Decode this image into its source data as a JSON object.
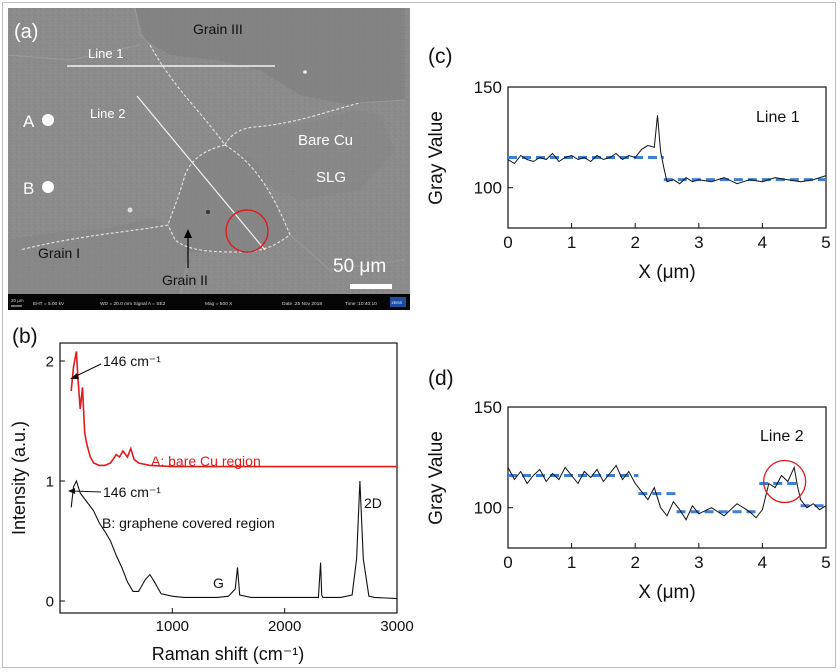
{
  "panels": {
    "a": {
      "label": "(a)",
      "grain1": "Grain I",
      "grain2": "Grain II",
      "grain3": "Grain III",
      "bare_cu": "Bare Cu",
      "slg": "SLG",
      "line1": "Line 1",
      "line2": "Line 2",
      "pointA": "A",
      "pointB": "B",
      "scalebar": "50 μm",
      "info_scale": "20 μm",
      "info_eht": "EHT = 5.00 kV",
      "info_wd": "WD = 20.0 mm   Signal A = SE2",
      "info_mag": "Mag = 500 X",
      "info_date": "Date :25 Nov 2018",
      "info_time": "Time :10:40:10",
      "info_logo": "ZEISS"
    },
    "b": {
      "label": "(b)"
    },
    "c": {
      "label": "(c)"
    },
    "d": {
      "label": "(d)"
    }
  },
  "colors": {
    "red": "#e01b1b",
    "black": "#111111",
    "blue_fit": "#3f7fd3",
    "sem_bg": "#8a8a8a",
    "sem_dark": "#7a7a7a"
  },
  "chart_data": [
    {
      "id": "b",
      "type": "line",
      "xlabel": "Raman shift (cm⁻¹)",
      "ylabel": "Intensity (a.u.)",
      "xlim": [
        0,
        3000
      ],
      "ylim": [
        -0.1,
        2.15
      ],
      "xticks": [
        1000,
        2000,
        3000
      ],
      "yticks": [
        0,
        1,
        2
      ],
      "series": [
        {
          "name": "A: bare Cu region",
          "color": "#e01b1b",
          "x": [
            100,
            120,
            146,
            160,
            180,
            200,
            220,
            240,
            270,
            300,
            350,
            400,
            450,
            500,
            530,
            560,
            600,
            630,
            660,
            700,
            800,
            1000,
            1500,
            2000,
            2500,
            3000
          ],
          "y": [
            1.75,
            1.95,
            2.08,
            1.85,
            1.6,
            1.78,
            1.4,
            1.3,
            1.2,
            1.15,
            1.13,
            1.13,
            1.15,
            1.22,
            1.2,
            1.25,
            1.2,
            1.27,
            1.18,
            1.15,
            1.13,
            1.12,
            1.12,
            1.12,
            1.12,
            1.12
          ]
        },
        {
          "name": "B: graphene covered region",
          "color": "#111111",
          "x": [
            100,
            120,
            146,
            180,
            220,
            260,
            300,
            350,
            400,
            450,
            500,
            550,
            600,
            650,
            700,
            760,
            800,
            840,
            900,
            1000,
            1100,
            1200,
            1300,
            1400,
            1500,
            1560,
            1580,
            1600,
            1700,
            1900,
            2100,
            2300,
            2320,
            2330,
            2340,
            2400,
            2500,
            2600,
            2640,
            2670,
            2700,
            2750,
            2800,
            3000
          ],
          "y": [
            0.78,
            0.95,
            1.0,
            0.9,
            0.85,
            0.8,
            0.75,
            0.65,
            0.58,
            0.5,
            0.38,
            0.28,
            0.16,
            0.08,
            0.08,
            0.18,
            0.22,
            0.16,
            0.06,
            0.04,
            0.03,
            0.03,
            0.03,
            0.03,
            0.04,
            0.1,
            0.28,
            0.05,
            0.03,
            0.03,
            0.03,
            0.03,
            0.32,
            0.05,
            0.03,
            0.03,
            0.03,
            0.05,
            0.35,
            1.0,
            0.35,
            0.04,
            0.03,
            0.02
          ]
        }
      ],
      "annotations": {
        "peak_a": "146 cm⁻¹",
        "peak_b": "146 cm⁻¹",
        "label_a": "A: bare Cu region",
        "label_b": "B: graphene covered region",
        "g_band": "G",
        "twod_band": "2D"
      }
    },
    {
      "id": "c",
      "type": "line",
      "title": "Line 1",
      "xlabel": "X (μm)",
      "ylabel": "Gray Value",
      "xlim": [
        0,
        5
      ],
      "ylim": [
        80,
        150
      ],
      "xticks": [
        0,
        1,
        2,
        3,
        4,
        5
      ],
      "yticks": [
        100,
        150
      ],
      "series": [
        {
          "name": "Line 1",
          "color": "#111111",
          "x": [
            0,
            0.1,
            0.2,
            0.3,
            0.4,
            0.5,
            0.6,
            0.7,
            0.8,
            0.9,
            1.0,
            1.1,
            1.2,
            1.3,
            1.4,
            1.5,
            1.6,
            1.7,
            1.8,
            1.9,
            2.0,
            2.1,
            2.2,
            2.3,
            2.35,
            2.4,
            2.45,
            2.5,
            2.6,
            2.7,
            2.8,
            2.9,
            3.0,
            3.2,
            3.4,
            3.6,
            3.8,
            4.0,
            4.2,
            4.4,
            4.6,
            4.8,
            5.0
          ],
          "y": [
            114,
            112,
            116,
            114,
            113,
            115,
            114,
            117,
            113,
            115,
            116,
            114,
            115,
            113,
            116,
            114,
            115,
            117,
            114,
            116,
            115,
            119,
            121,
            120,
            136,
            118,
            110,
            103,
            104,
            102,
            105,
            103,
            104,
            103,
            105,
            102,
            104,
            103,
            105,
            104,
            103,
            104,
            106
          ]
        }
      ],
      "fits": [
        {
          "x": [
            0,
            2.45
          ],
          "y": [
            115,
            115
          ]
        },
        {
          "x": [
            2.45,
            5
          ],
          "y": [
            104,
            104
          ]
        }
      ]
    },
    {
      "id": "d",
      "type": "line",
      "title": "Line 2",
      "xlabel": "X (μm)",
      "ylabel": "Gray Value",
      "xlim": [
        0,
        5
      ],
      "ylim": [
        80,
        150
      ],
      "xticks": [
        0,
        1,
        2,
        3,
        4,
        5
      ],
      "yticks": [
        100,
        150
      ],
      "series": [
        {
          "name": "Line 2",
          "color": "#111111",
          "x": [
            0,
            0.1,
            0.2,
            0.3,
            0.4,
            0.5,
            0.6,
            0.7,
            0.8,
            0.9,
            1.0,
            1.1,
            1.2,
            1.3,
            1.4,
            1.5,
            1.6,
            1.7,
            1.8,
            1.9,
            2.0,
            2.1,
            2.2,
            2.3,
            2.4,
            2.5,
            2.6,
            2.7,
            2.8,
            2.9,
            3.0,
            3.2,
            3.4,
            3.6,
            3.8,
            3.9,
            4.0,
            4.1,
            4.2,
            4.3,
            4.4,
            4.5,
            4.55,
            4.6,
            4.7,
            4.8,
            4.9,
            5.0
          ],
          "y": [
            120,
            114,
            118,
            112,
            116,
            119,
            113,
            117,
            114,
            120,
            116,
            112,
            118,
            115,
            119,
            113,
            117,
            121,
            114,
            118,
            112,
            108,
            104,
            110,
            100,
            96,
            103,
            99,
            94,
            101,
            97,
            100,
            96,
            102,
            98,
            95,
            99,
            112,
            110,
            116,
            113,
            120,
            111,
            104,
            100,
            102,
            99,
            101
          ]
        }
      ],
      "fits": [
        {
          "x": [
            0,
            2.05
          ],
          "y": [
            116,
            116
          ]
        },
        {
          "x": [
            2.05,
            2.65
          ],
          "y": [
            107,
            107
          ]
        },
        {
          "x": [
            2.65,
            3.95
          ],
          "y": [
            98,
            98
          ]
        },
        {
          "x": [
            3.95,
            4.6
          ],
          "y": [
            112,
            112
          ]
        },
        {
          "x": [
            4.6,
            5
          ],
          "y": [
            101,
            101
          ]
        }
      ],
      "highlight_circle_x": 4.35,
      "highlight_circle_y": 113
    }
  ]
}
